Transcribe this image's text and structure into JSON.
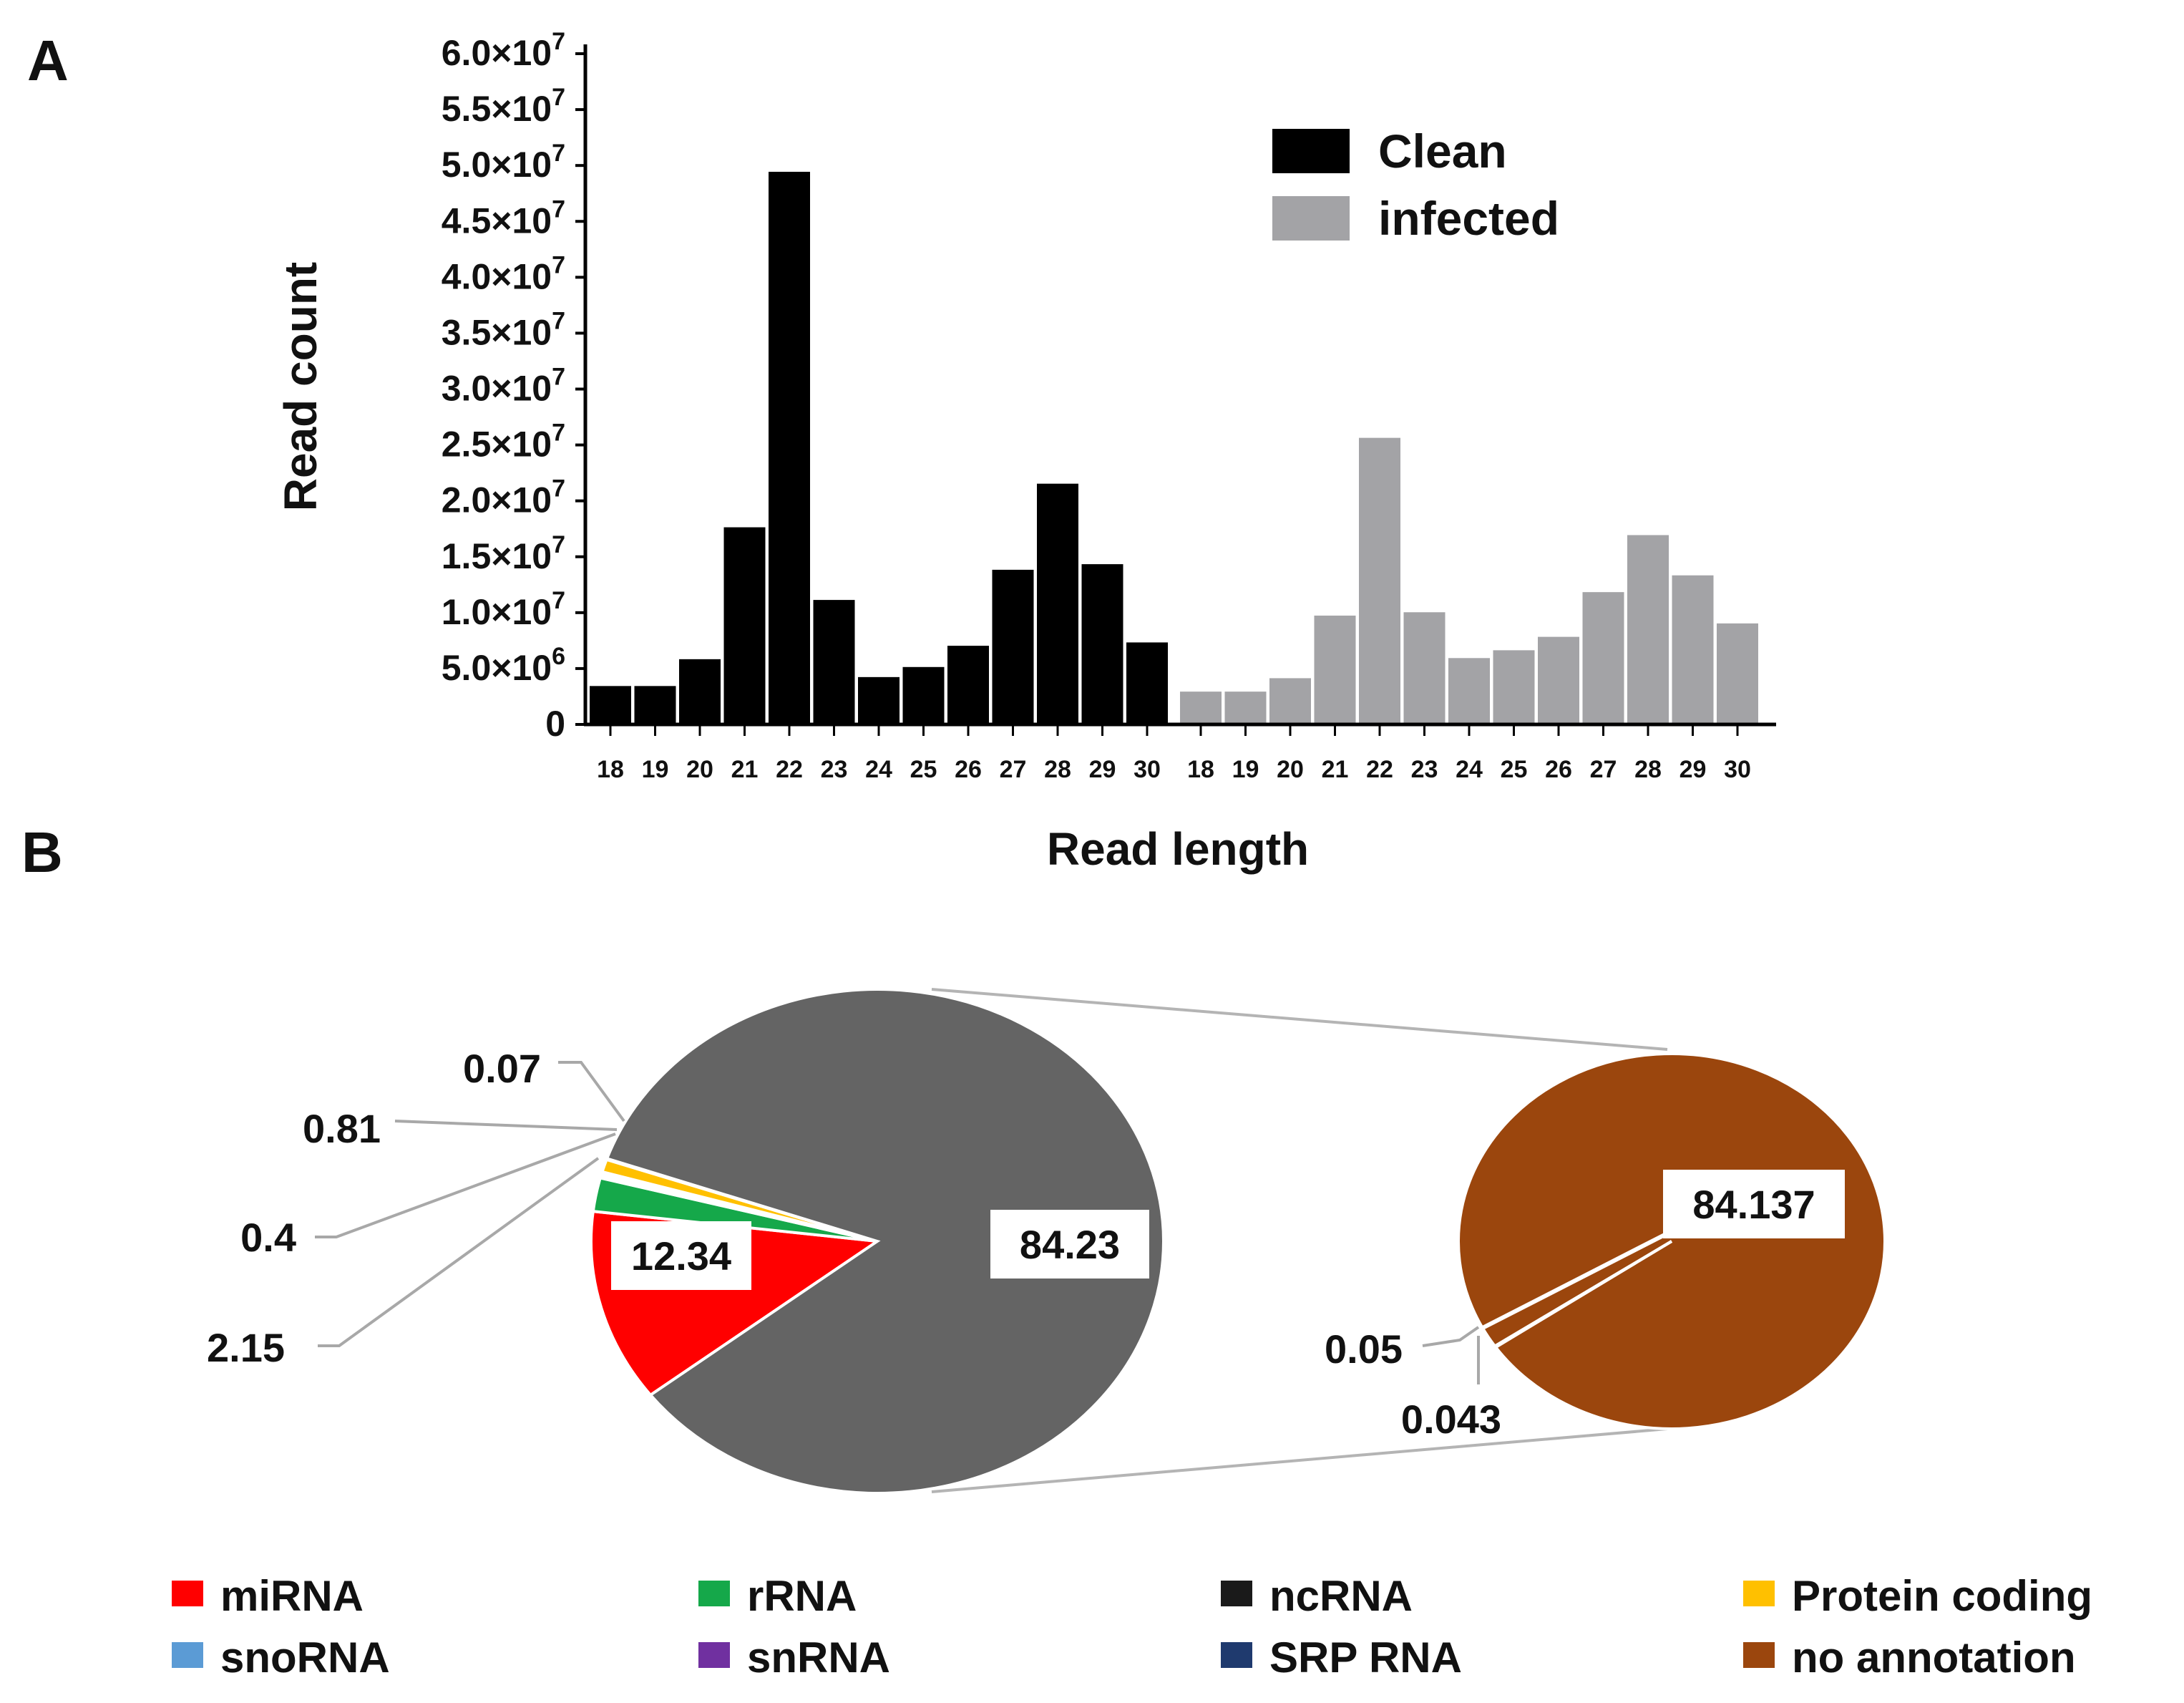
{
  "panels": {
    "a": "A",
    "b": "B"
  },
  "chart_data": [
    {
      "type": "bar",
      "panel": "A",
      "ylabel": "Read count",
      "xlabel": "Read length",
      "ylim": [
        0,
        60000000
      ],
      "yticks": [
        {
          "value": 0,
          "mant": "0",
          "exp": ""
        },
        {
          "value": 5000000,
          "mant": "5.0×10",
          "exp": "6"
        },
        {
          "value": 10000000,
          "mant": "1.0×10",
          "exp": "7"
        },
        {
          "value": 15000000,
          "mant": "1.5×10",
          "exp": "7"
        },
        {
          "value": 20000000,
          "mant": "2.0×10",
          "exp": "7"
        },
        {
          "value": 25000000,
          "mant": "2.5×10",
          "exp": "7"
        },
        {
          "value": 30000000,
          "mant": "3.0×10",
          "exp": "7"
        },
        {
          "value": 35000000,
          "mant": "3.5×10",
          "exp": "7"
        },
        {
          "value": 40000000,
          "mant": "4.0×10",
          "exp": "7"
        },
        {
          "value": 45000000,
          "mant": "4.5×10",
          "exp": "7"
        },
        {
          "value": 50000000,
          "mant": "5.0×10",
          "exp": "7"
        },
        {
          "value": 55000000,
          "mant": "5.5×10",
          "exp": "7"
        },
        {
          "value": 60000000,
          "mant": "6.0×10",
          "exp": "7"
        }
      ],
      "categories": [
        "18",
        "19",
        "20",
        "21",
        "22",
        "23",
        "24",
        "25",
        "26",
        "27",
        "28",
        "29",
        "30"
      ],
      "series": [
        {
          "name": "Clean",
          "color": "#000000",
          "values": [
            3500000,
            3500000,
            5900000,
            17700000,
            49500000,
            11200000,
            4300000,
            5200000,
            7100000,
            13900000,
            21600000,
            14400000,
            7400000
          ]
        },
        {
          "name": "infected",
          "color": "#a3a3a6",
          "values": [
            3000000,
            3000000,
            4200000,
            9800000,
            25700000,
            10100000,
            6000000,
            6700000,
            7900000,
            11900000,
            17000000,
            13400000,
            9100000
          ]
        }
      ],
      "legend_position": "top-right"
    },
    {
      "type": "pie",
      "panel": "B",
      "name": "main",
      "slices": [
        {
          "category": "miRNA",
          "value": 12.34,
          "label": "12.34",
          "color": "#ff0000"
        },
        {
          "category": "rRNA",
          "value": 2.15,
          "label": "2.15",
          "color": "#15a84a"
        },
        {
          "category": "gap",
          "value": 0.4,
          "label": "0.4",
          "color": "#ffffff"
        },
        {
          "category": "Protein coding",
          "value": 0.81,
          "label": "0.81",
          "color": "#ffc000"
        },
        {
          "category": "snoRNA",
          "value": 0.07,
          "label": "0.07",
          "color": "#5b9bd5"
        },
        {
          "category": "ncRNA",
          "value": 84.23,
          "label": "84.23",
          "color": "#646464"
        }
      ]
    },
    {
      "type": "pie",
      "panel": "B",
      "name": "ncRNA breakdown",
      "slices": [
        {
          "category": "no annotation",
          "value": 84.137,
          "label": "84.137",
          "color": "#9b460d"
        },
        {
          "category": "snRNA",
          "value": 0.05,
          "label": "0.05",
          "color": "#7030a0"
        },
        {
          "category": "SRP RNA",
          "value": 0.043,
          "label": "0.043",
          "color": "#1f3a6e"
        }
      ]
    }
  ],
  "legend_b": [
    {
      "label": "miRNA",
      "color": "#ff0000"
    },
    {
      "label": "rRNA",
      "color": "#15a84a"
    },
    {
      "label": "ncRNA",
      "color": "#1a1a1a"
    },
    {
      "label": "Protein coding",
      "color": "#ffc000"
    },
    {
      "label": "snoRNA",
      "color": "#5b9bd5"
    },
    {
      "label": "snRNA",
      "color": "#7030a0"
    },
    {
      "label": "SRP RNA",
      "color": "#1f3a6e"
    },
    {
      "label": "no annotation",
      "color": "#9b460d"
    }
  ]
}
